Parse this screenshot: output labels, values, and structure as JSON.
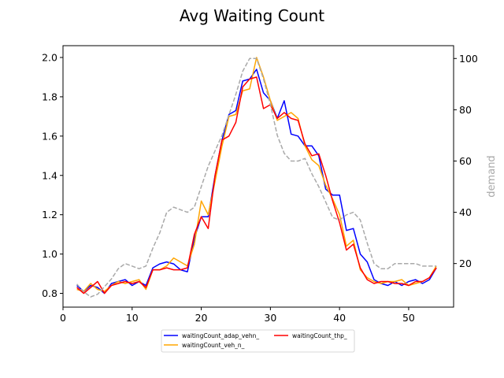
{
  "chart_data": {
    "type": "line",
    "title": "Avg Waiting Count",
    "xlabel": "",
    "ylabel": "",
    "y2label": "demand",
    "xlim": [
      0,
      56.5
    ],
    "ylim": [
      0.73,
      2.06
    ],
    "y2lim": [
      3,
      105
    ],
    "xticks": [
      0,
      10,
      20,
      30,
      40,
      50
    ],
    "yticks": [
      0.8,
      1.0,
      1.2,
      1.4,
      1.6,
      1.8,
      2.0
    ],
    "yticklabels": [
      "0.8",
      "1.0",
      "1.2",
      "1.4",
      "1.6",
      "1.8",
      "2.0"
    ],
    "y2ticks": [
      20,
      40,
      60,
      80,
      100
    ],
    "grid": false,
    "legend": {
      "location": "bottom-center",
      "columns": 2
    },
    "series": [
      {
        "name": "waitingCount_adap_vehn_",
        "axis": "left",
        "color": "#0000ff",
        "dash": "solid",
        "x": [
          2,
          3,
          4,
          5,
          6,
          7,
          8,
          9,
          10,
          11,
          12,
          13,
          14,
          15,
          16,
          17,
          18,
          19,
          20,
          21,
          22,
          23,
          24,
          25,
          26,
          27,
          28,
          29,
          30,
          31,
          32,
          33,
          34,
          35,
          36,
          37,
          38,
          39,
          40,
          41,
          42,
          43,
          44,
          45,
          46,
          47,
          48,
          49,
          50,
          51,
          52,
          53,
          54
        ],
        "y": [
          0.84,
          0.81,
          0.84,
          0.83,
          0.8,
          0.85,
          0.86,
          0.87,
          0.84,
          0.86,
          0.84,
          0.93,
          0.95,
          0.96,
          0.95,
          0.92,
          0.91,
          1.08,
          1.19,
          1.19,
          1.4,
          1.58,
          1.71,
          1.73,
          1.88,
          1.89,
          1.94,
          1.82,
          1.78,
          1.69,
          1.78,
          1.61,
          1.6,
          1.55,
          1.55,
          1.5,
          1.33,
          1.3,
          1.3,
          1.12,
          1.13,
          1.0,
          0.96,
          0.87,
          0.85,
          0.84,
          0.86,
          0.84,
          0.86,
          0.87,
          0.85,
          0.87,
          0.93
        ]
      },
      {
        "name": "waitingCount_veh_n_",
        "axis": "left",
        "color": "#ffa500",
        "dash": "solid",
        "x": [
          2,
          3,
          4,
          5,
          6,
          7,
          8,
          9,
          10,
          11,
          12,
          13,
          14,
          15,
          16,
          17,
          18,
          19,
          20,
          21,
          22,
          23,
          24,
          25,
          26,
          27,
          28,
          29,
          30,
          31,
          32,
          33,
          34,
          35,
          36,
          37,
          38,
          39,
          40,
          41,
          42,
          43,
          44,
          45,
          46,
          47,
          48,
          49,
          50,
          51,
          52,
          53,
          54
        ],
        "y": [
          0.82,
          0.81,
          0.85,
          0.82,
          0.81,
          0.84,
          0.86,
          0.85,
          0.86,
          0.87,
          0.82,
          0.92,
          0.92,
          0.94,
          0.98,
          0.96,
          0.94,
          1.05,
          1.27,
          1.2,
          1.37,
          1.55,
          1.7,
          1.71,
          1.83,
          1.84,
          2.0,
          1.9,
          1.78,
          1.68,
          1.7,
          1.72,
          1.69,
          1.55,
          1.48,
          1.45,
          1.35,
          1.28,
          1.2,
          1.04,
          1.07,
          0.92,
          0.88,
          0.86,
          0.85,
          0.86,
          0.86,
          0.87,
          0.84,
          0.85,
          0.86,
          0.88,
          0.94
        ]
      },
      {
        "name": "waitingCount_thp_",
        "axis": "left",
        "color": "#ff0000",
        "dash": "solid",
        "x": [
          2,
          3,
          4,
          5,
          6,
          7,
          8,
          9,
          10,
          11,
          12,
          13,
          14,
          15,
          16,
          17,
          18,
          19,
          20,
          21,
          22,
          23,
          24,
          25,
          26,
          27,
          28,
          29,
          30,
          31,
          32,
          33,
          34,
          35,
          36,
          37,
          38,
          39,
          40,
          41,
          42,
          43,
          44,
          45,
          46,
          47,
          48,
          49,
          50,
          51,
          52,
          53,
          54
        ],
        "y": [
          0.83,
          0.8,
          0.83,
          0.86,
          0.8,
          0.84,
          0.85,
          0.86,
          0.85,
          0.86,
          0.83,
          0.92,
          0.92,
          0.93,
          0.92,
          0.92,
          0.93,
          1.1,
          1.19,
          1.13,
          1.4,
          1.58,
          1.6,
          1.67,
          1.85,
          1.89,
          1.9,
          1.74,
          1.76,
          1.69,
          1.72,
          1.69,
          1.68,
          1.56,
          1.5,
          1.51,
          1.4,
          1.27,
          1.16,
          1.02,
          1.05,
          0.93,
          0.87,
          0.85,
          0.86,
          0.86,
          0.85,
          0.85,
          0.84,
          0.86,
          0.86,
          0.88,
          0.93
        ]
      },
      {
        "name": "demand",
        "axis": "right",
        "color": "#a9a9a9",
        "dash": "dashed",
        "x": [
          2,
          3,
          4,
          5,
          6,
          7,
          8,
          9,
          10,
          11,
          12,
          13,
          14,
          15,
          16,
          17,
          18,
          19,
          20,
          21,
          22,
          23,
          24,
          25,
          26,
          27,
          28,
          29,
          30,
          31,
          32,
          33,
          34,
          35,
          36,
          37,
          38,
          39,
          40,
          41,
          42,
          43,
          44,
          45,
          46,
          47,
          48,
          49,
          50,
          51,
          52,
          53,
          54
        ],
        "y": [
          12,
          9,
          7,
          8,
          11,
          14,
          18,
          20,
          19,
          18,
          19,
          26,
          32,
          40,
          42,
          41,
          40,
          42,
          50,
          58,
          64,
          70,
          78,
          86,
          95,
          100,
          100,
          92,
          82,
          70,
          63,
          60,
          60,
          61,
          55,
          50,
          44,
          38,
          37,
          39,
          40,
          37,
          28,
          20,
          18,
          18,
          20,
          20,
          20,
          20,
          19,
          19,
          19
        ]
      }
    ]
  }
}
